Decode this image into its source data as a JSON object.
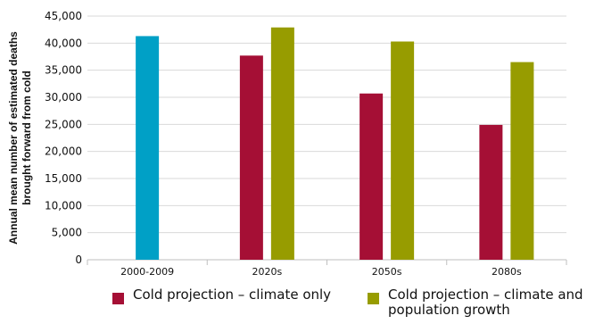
{
  "chart_data": {
    "type": "bar",
    "categories": [
      "2000-2009",
      "2020s",
      "2050s",
      "2080s"
    ],
    "series": [
      {
        "name": "",
        "color": "#00A0C6",
        "values": [
          41300,
          null,
          null,
          null
        ]
      },
      {
        "name": "Cold projection – climate only",
        "color": "#A50F35",
        "values": [
          null,
          37700,
          30700,
          24900
        ]
      },
      {
        "name": "Cold projection – climate and population growth",
        "color": "#979C00",
        "values": [
          null,
          42900,
          40300,
          36500
        ]
      }
    ],
    "ylabel_lines": [
      "Annual mean number of estimated deaths",
      "brought forward from cold"
    ],
    "yticks": [
      "0",
      "5,000",
      "10,000",
      "15,000",
      "20,000",
      "25,000",
      "30,000",
      "35,000",
      "40,000",
      "45,000"
    ],
    "ylim": [
      0,
      45000
    ],
    "grid": true,
    "legend_position": "bottom",
    "legend": [
      {
        "color": "#A50F35",
        "label_lines": [
          "Cold projection – climate only"
        ]
      },
      {
        "color": "#979C00",
        "label_lines": [
          "Cold projection – climate and",
          "population growth"
        ]
      }
    ]
  }
}
